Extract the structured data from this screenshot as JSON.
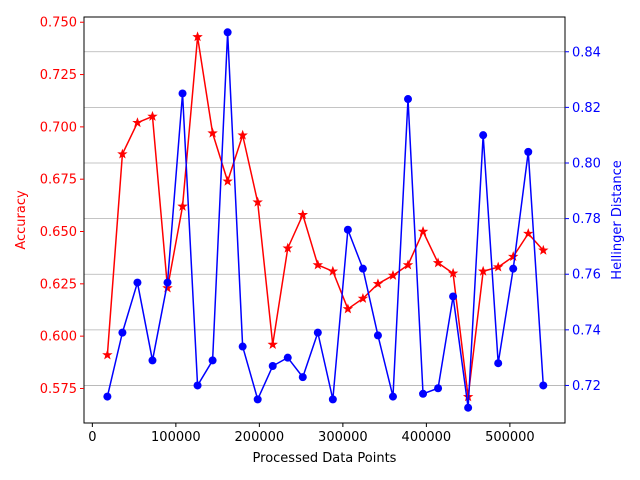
{
  "chart_data": {
    "type": "line",
    "title": "",
    "xlabel": "Processed Data Points",
    "ylabel_left": "Accuracy",
    "ylabel_right": "Hellinger Distance",
    "xlim": [
      -10000,
      566000
    ],
    "ylim_left": [
      0.5585,
      0.7525
    ],
    "ylim_right": [
      0.7065,
      0.8525
    ],
    "x_ticks": [
      0,
      100000,
      200000,
      300000,
      400000,
      500000
    ],
    "x_tick_labels": [
      "0",
      "100000",
      "200000",
      "300000",
      "400000",
      "500000"
    ],
    "y_left_ticks": [
      0.575,
      0.6,
      0.625,
      0.65,
      0.675,
      0.7,
      0.725,
      0.75
    ],
    "y_left_tick_labels": [
      "0.575",
      "0.600",
      "0.625",
      "0.650",
      "0.675",
      "0.700",
      "0.725",
      "0.750"
    ],
    "y_right_ticks": [
      0.72,
      0.74,
      0.76,
      0.78,
      0.8,
      0.82,
      0.84
    ],
    "y_right_tick_labels": [
      "0.72",
      "0.74",
      "0.76",
      "0.78",
      "0.80",
      "0.82",
      "0.84"
    ],
    "grid": "horizontal lines at right-axis ticks",
    "x": [
      18000,
      36000,
      54000,
      72000,
      90000,
      108000,
      126000,
      144000,
      162000,
      180000,
      198000,
      216000,
      234000,
      252000,
      270000,
      288000,
      306000,
      324000,
      342000,
      360000,
      378000,
      396000,
      414000,
      432000,
      450000,
      468000,
      486000,
      504000,
      522000,
      540000
    ],
    "series": [
      {
        "axis": "left",
        "color": "#ff0000",
        "marker": "star",
        "values": [
          0.591,
          0.687,
          0.702,
          0.705,
          0.623,
          0.662,
          0.743,
          0.697,
          0.674,
          0.696,
          0.664,
          0.596,
          0.642,
          0.658,
          0.634,
          0.631,
          0.613,
          0.618,
          0.625,
          0.629,
          0.634,
          0.65,
          0.635,
          0.63,
          0.571,
          0.631,
          0.633,
          0.638,
          0.649,
          0.641
        ]
      },
      {
        "axis": "right",
        "color": "#0000ff",
        "marker": "circle",
        "values": [
          0.716,
          0.739,
          0.757,
          0.729,
          0.757,
          0.825,
          0.72,
          0.729,
          0.847,
          0.734,
          0.715,
          0.727,
          0.73,
          0.723,
          0.739,
          0.715,
          0.776,
          0.762,
          0.738,
          0.716,
          0.823,
          0.717,
          0.719,
          0.752,
          0.712,
          0.81,
          0.728,
          0.762,
          0.804,
          0.72
        ]
      }
    ]
  }
}
